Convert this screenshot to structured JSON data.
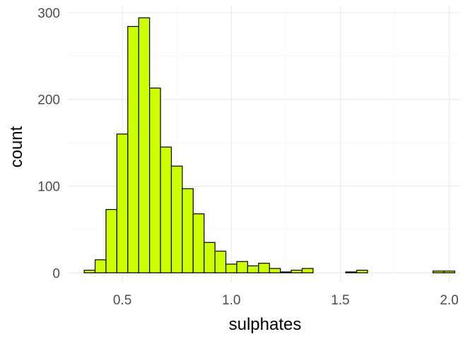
{
  "chart_data": {
    "type": "bar",
    "title": "",
    "xlabel": "sulphates",
    "ylabel": "count",
    "bin_width": 0.05,
    "bin_starts": [
      0.325,
      0.375,
      0.425,
      0.475,
      0.525,
      0.575,
      0.625,
      0.675,
      0.725,
      0.775,
      0.825,
      0.875,
      0.925,
      0.975,
      1.025,
      1.075,
      1.125,
      1.175,
      1.225,
      1.275,
      1.325,
      1.375,
      1.425,
      1.475,
      1.525,
      1.575,
      1.625,
      1.675,
      1.725,
      1.775,
      1.825,
      1.875,
      1.925,
      1.975
    ],
    "values": [
      3,
      15,
      73,
      160,
      284,
      294,
      213,
      145,
      123,
      97,
      68,
      35,
      25,
      10,
      13,
      8,
      11,
      5,
      1,
      3,
      5,
      0,
      0,
      0,
      1,
      3,
      0,
      0,
      0,
      0,
      0,
      0,
      2,
      2
    ],
    "xlim": [
      0.25,
      2.05
    ],
    "ylim": [
      -12,
      308
    ],
    "x_ticks": [
      0.5,
      1.0,
      1.5,
      2.0
    ],
    "x_tick_labels": [
      "0.5",
      "1.0",
      "1.5",
      "2.0"
    ],
    "y_ticks": [
      0,
      100,
      200,
      300
    ],
    "y_tick_labels": [
      "0",
      "100",
      "200",
      "300"
    ],
    "grid": true,
    "bar_color": "#CCFF00",
    "bar_outline": "#000000",
    "legend": "none"
  }
}
